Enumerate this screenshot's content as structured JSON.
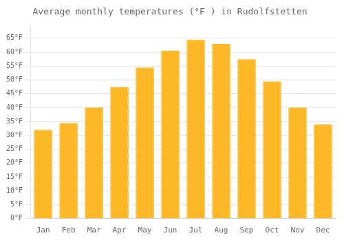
{
  "chart_data": {
    "type": "bar",
    "title": "Average monthly temperatures (°F ) in Rudolfstetten",
    "categories": [
      "Jan",
      "Feb",
      "Mar",
      "Apr",
      "May",
      "Jun",
      "Jul",
      "Aug",
      "Sep",
      "Oct",
      "Nov",
      "Dec"
    ],
    "values": [
      32,
      34.5,
      40,
      47.5,
      54.5,
      60.5,
      64.5,
      63,
      57.5,
      49.5,
      40,
      34
    ],
    "color": "#FDB827",
    "ylim": [
      0,
      70
    ],
    "yticks": [
      {
        "value": 0,
        "label": "0°F"
      },
      {
        "value": 5,
        "label": "5°F"
      },
      {
        "value": 10,
        "label": "10°F"
      },
      {
        "value": 15,
        "label": "15°F"
      },
      {
        "value": 20,
        "label": "20°F"
      },
      {
        "value": 25,
        "label": "25°F"
      },
      {
        "value": 30,
        "label": "30°F"
      },
      {
        "value": 35,
        "label": "35°F"
      },
      {
        "value": 40,
        "label": "40°F"
      },
      {
        "value": 45,
        "label": "45°F"
      },
      {
        "value": 50,
        "label": "50°F"
      },
      {
        "value": 55,
        "label": "55°F"
      },
      {
        "value": 60,
        "label": "60°F"
      },
      {
        "value": 65,
        "label": "65°F"
      }
    ],
    "grid": true
  }
}
